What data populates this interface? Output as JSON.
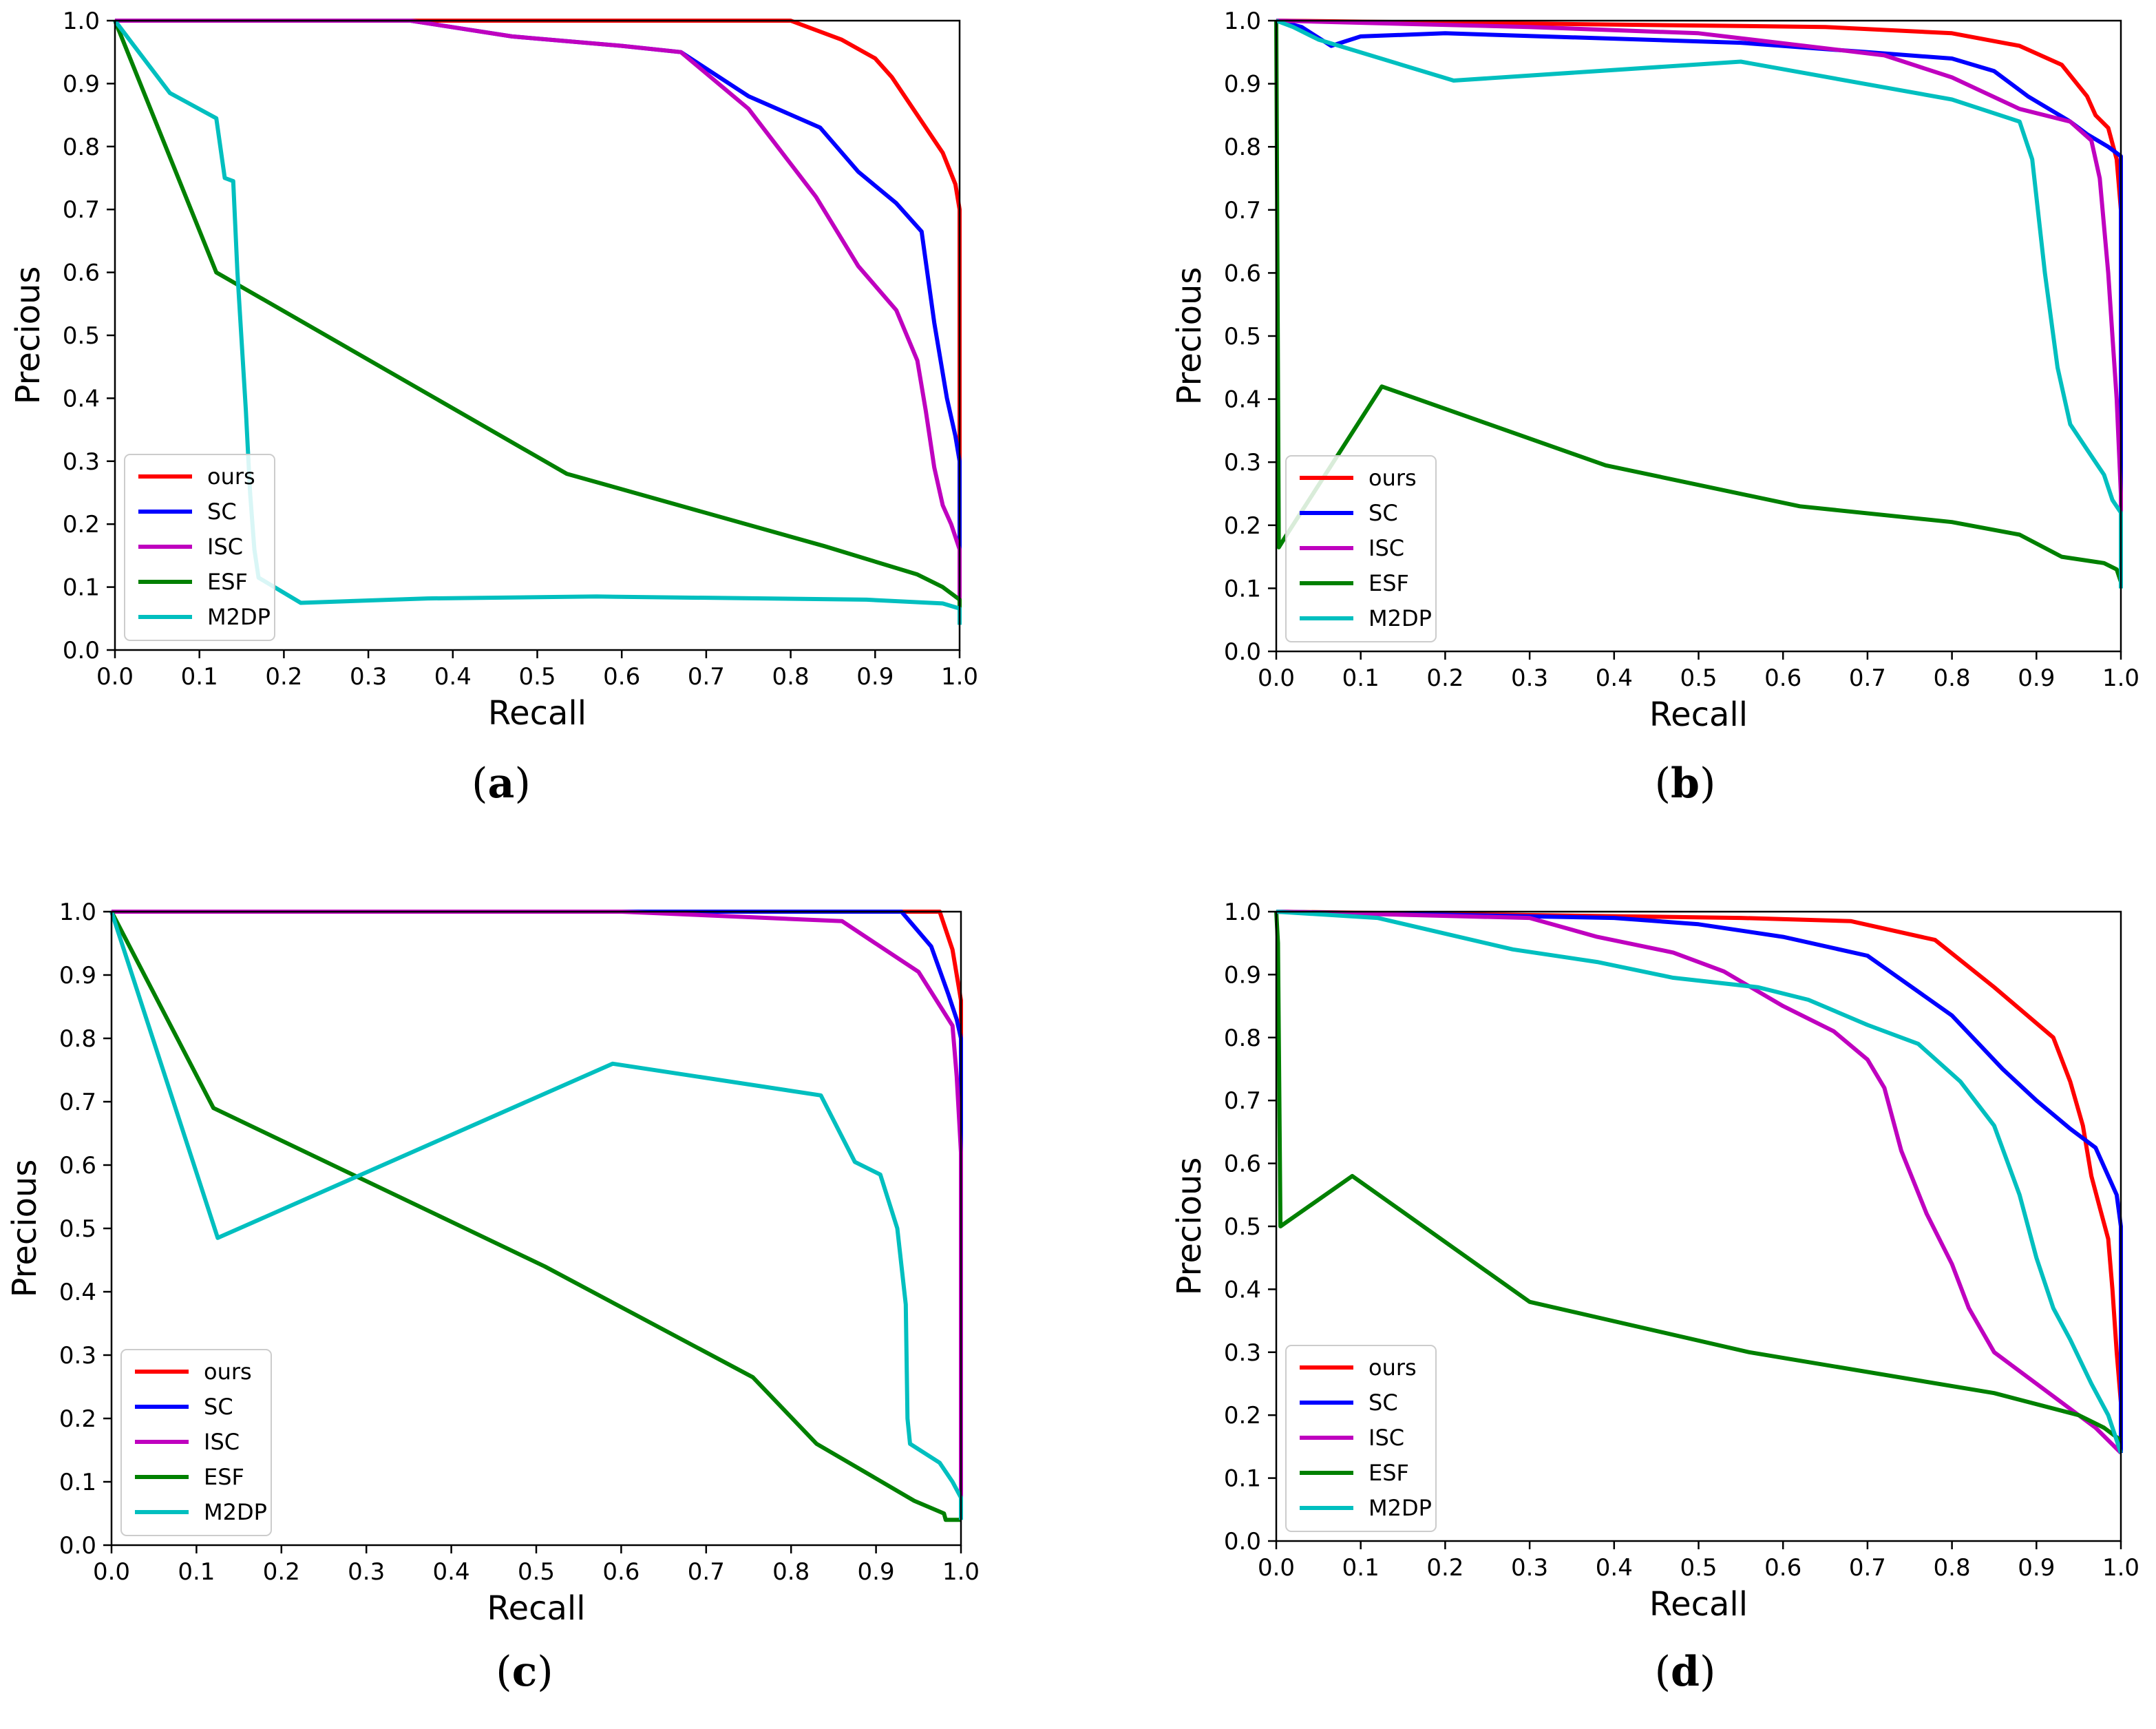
{
  "colors": {
    "ours": "#ff0000",
    "SC": "#0000ff",
    "ISC": "#bf00bf",
    "ESF": "#008000",
    "M2DP": "#00bfbf"
  },
  "chart_data": [
    {
      "type": "line",
      "panel": "(a)",
      "xlabel": "Recall",
      "ylabel": "Precious",
      "xlim": [
        0,
        1
      ],
      "ylim": [
        0,
        1
      ],
      "xticks": [
        "0.0",
        "0.1",
        "0.2",
        "0.3",
        "0.4",
        "0.5",
        "0.6",
        "0.7",
        "0.8",
        "0.9",
        "1.0"
      ],
      "yticks": [
        "0.0",
        "0.1",
        "0.2",
        "0.3",
        "0.4",
        "0.5",
        "0.6",
        "0.7",
        "0.8",
        "0.9",
        "1.0"
      ],
      "legend": [
        "ours",
        "SC",
        "ISC",
        "ESF",
        "M2DP"
      ],
      "legend_loc": "lower-left",
      "series": [
        {
          "name": "ours",
          "x": [
            0,
            0.8,
            0.86,
            0.9,
            0.92,
            0.95,
            0.98,
            0.995,
            1.0,
            1.0
          ],
          "y": [
            1.0,
            1.0,
            0.97,
            0.94,
            0.91,
            0.85,
            0.79,
            0.74,
            0.7,
            0.05
          ]
        },
        {
          "name": "SC",
          "x": [
            0,
            0.35,
            0.47,
            0.6,
            0.67,
            0.75,
            0.835,
            0.88,
            0.925,
            0.955,
            0.97,
            0.985,
            0.995,
            1.0,
            1.0
          ],
          "y": [
            1.0,
            1.0,
            0.975,
            0.96,
            0.95,
            0.88,
            0.83,
            0.76,
            0.71,
            0.665,
            0.52,
            0.4,
            0.34,
            0.3,
            0.05
          ]
        },
        {
          "name": "ISC",
          "x": [
            0,
            0.35,
            0.47,
            0.6,
            0.67,
            0.75,
            0.83,
            0.88,
            0.925,
            0.95,
            0.96,
            0.97,
            0.98,
            0.99,
            1.0,
            1.0
          ],
          "y": [
            1.0,
            1.0,
            0.975,
            0.96,
            0.95,
            0.86,
            0.72,
            0.61,
            0.54,
            0.46,
            0.38,
            0.29,
            0.23,
            0.2,
            0.16,
            0.05
          ]
        },
        {
          "name": "ESF",
          "x": [
            0,
            0.12,
            0.535,
            0.84,
            0.95,
            0.98,
            1.0,
            1.0
          ],
          "y": [
            1.0,
            0.6,
            0.28,
            0.165,
            0.12,
            0.1,
            0.08,
            0.05
          ]
        },
        {
          "name": "M2DP",
          "x": [
            0,
            0.065,
            0.12,
            0.13,
            0.14,
            0.145,
            0.155,
            0.16,
            0.165,
            0.17,
            0.22,
            0.37,
            0.57,
            0.89,
            0.98,
            1.0,
            1.0
          ],
          "y": [
            1.0,
            0.885,
            0.845,
            0.75,
            0.745,
            0.6,
            0.38,
            0.25,
            0.16,
            0.115,
            0.075,
            0.082,
            0.085,
            0.08,
            0.074,
            0.066,
            0.04
          ]
        }
      ]
    },
    {
      "type": "line",
      "panel": "(b)",
      "xlabel": "Recall",
      "ylabel": "Precious",
      "xlim": [
        0,
        1
      ],
      "ylim": [
        0,
        1
      ],
      "xticks": [
        "0.0",
        "0.1",
        "0.2",
        "0.3",
        "0.4",
        "0.5",
        "0.6",
        "0.7",
        "0.8",
        "0.9",
        "1.0"
      ],
      "yticks": [
        "0.0",
        "0.1",
        "0.2",
        "0.3",
        "0.4",
        "0.5",
        "0.6",
        "0.7",
        "0.8",
        "0.9",
        "1.0"
      ],
      "legend": [
        "ours",
        "SC",
        "ISC",
        "ESF",
        "M2DP"
      ],
      "legend_loc": "lower-left",
      "series": [
        {
          "name": "ours",
          "x": [
            0,
            0.65,
            0.8,
            0.88,
            0.93,
            0.96,
            0.97,
            0.985,
            0.995,
            1.0,
            1.0
          ],
          "y": [
            1.0,
            0.99,
            0.98,
            0.96,
            0.93,
            0.88,
            0.85,
            0.83,
            0.78,
            0.7,
            0.14
          ]
        },
        {
          "name": "SC",
          "x": [
            0,
            0.03,
            0.065,
            0.1,
            0.2,
            0.55,
            0.7,
            0.8,
            0.85,
            0.89,
            0.94,
            0.96,
            0.985,
            1.0,
            1.0
          ],
          "y": [
            1.0,
            0.99,
            0.96,
            0.975,
            0.98,
            0.965,
            0.95,
            0.94,
            0.92,
            0.88,
            0.84,
            0.82,
            0.8,
            0.785,
            0.14
          ]
        },
        {
          "name": "ISC",
          "x": [
            0,
            0.3,
            0.5,
            0.72,
            0.8,
            0.88,
            0.94,
            0.965,
            0.975,
            0.985,
            0.99,
            0.995,
            1.0,
            1.0
          ],
          "y": [
            1.0,
            0.99,
            0.98,
            0.945,
            0.91,
            0.86,
            0.84,
            0.81,
            0.75,
            0.6,
            0.5,
            0.4,
            0.25,
            0.14
          ]
        },
        {
          "name": "ESF",
          "x": [
            0,
            0.003,
            0.01,
            0.125,
            0.39,
            0.62,
            0.8,
            0.88,
            0.93,
            0.98,
            0.995,
            1.0,
            1.0
          ],
          "y": [
            1.0,
            0.165,
            0.18,
            0.42,
            0.295,
            0.23,
            0.205,
            0.185,
            0.15,
            0.14,
            0.13,
            0.11,
            0.1
          ]
        },
        {
          "name": "M2DP",
          "x": [
            0,
            0.02,
            0.05,
            0.21,
            0.55,
            0.8,
            0.88,
            0.895,
            0.91,
            0.925,
            0.94,
            0.96,
            0.98,
            0.99,
            1.0,
            1.0
          ],
          "y": [
            1.0,
            0.99,
            0.97,
            0.905,
            0.935,
            0.875,
            0.84,
            0.78,
            0.6,
            0.45,
            0.36,
            0.32,
            0.28,
            0.24,
            0.22,
            0.1
          ]
        }
      ]
    },
    {
      "type": "line",
      "panel": "(c)",
      "xlabel": "Recall",
      "ylabel": "Precious",
      "xlim": [
        0,
        1
      ],
      "ylim": [
        0,
        1
      ],
      "xticks": [
        "0.0",
        "0.1",
        "0.2",
        "0.3",
        "0.4",
        "0.5",
        "0.6",
        "0.7",
        "0.8",
        "0.9",
        "1.0"
      ],
      "yticks": [
        "0.0",
        "0.1",
        "0.2",
        "0.3",
        "0.4",
        "0.5",
        "0.6",
        "0.7",
        "0.8",
        "0.9",
        "1.0"
      ],
      "legend": [
        "ours",
        "SC",
        "ISC",
        "ESF",
        "M2DP"
      ],
      "legend_loc": "lower-left",
      "series": [
        {
          "name": "ours",
          "x": [
            0,
            0.975,
            0.99,
            1.0,
            1.0
          ],
          "y": [
            1.0,
            1.0,
            0.94,
            0.86,
            0.05
          ]
        },
        {
          "name": "SC",
          "x": [
            0,
            0.93,
            0.965,
            0.985,
            0.995,
            1.0,
            1.0
          ],
          "y": [
            1.0,
            1.0,
            0.945,
            0.87,
            0.83,
            0.8,
            0.05
          ]
        },
        {
          "name": "ISC",
          "x": [
            0,
            0.6,
            0.86,
            0.95,
            0.99,
            0.995,
            1.0,
            1.0
          ],
          "y": [
            1.0,
            1.0,
            0.985,
            0.905,
            0.82,
            0.74,
            0.62,
            0.05
          ]
        },
        {
          "name": "ESF",
          "x": [
            0,
            0.12,
            0.51,
            0.755,
            0.83,
            0.945,
            0.98,
            0.982,
            1.0
          ],
          "y": [
            1.0,
            0.69,
            0.44,
            0.265,
            0.16,
            0.07,
            0.05,
            0.04,
            0.04
          ]
        },
        {
          "name": "M2DP",
          "x": [
            0,
            0.125,
            0.59,
            0.835,
            0.875,
            0.905,
            0.925,
            0.935,
            0.937,
            0.94,
            0.975,
            0.99,
            1.0,
            1.0
          ],
          "y": [
            1.0,
            0.485,
            0.76,
            0.71,
            0.605,
            0.585,
            0.5,
            0.38,
            0.2,
            0.16,
            0.13,
            0.1,
            0.075,
            0.04
          ]
        }
      ]
    },
    {
      "type": "line",
      "panel": "(d)",
      "xlabel": "Recall",
      "ylabel": "Precious",
      "xlim": [
        0,
        1
      ],
      "ylim": [
        0,
        1
      ],
      "xticks": [
        "0.0",
        "0.1",
        "0.2",
        "0.3",
        "0.4",
        "0.5",
        "0.6",
        "0.7",
        "0.8",
        "0.9",
        "1.0"
      ],
      "yticks": [
        "0.0",
        "0.1",
        "0.2",
        "0.3",
        "0.4",
        "0.5",
        "0.6",
        "0.7",
        "0.8",
        "0.9",
        "1.0"
      ],
      "legend": [
        "ours",
        "SC",
        "ISC",
        "ESF",
        "M2DP"
      ],
      "legend_loc": "lower-left",
      "series": [
        {
          "name": "ours",
          "x": [
            0,
            0.55,
            0.68,
            0.78,
            0.85,
            0.92,
            0.94,
            0.955,
            0.965,
            0.975,
            0.985,
            0.99,
            0.995,
            1.0,
            1.0
          ],
          "y": [
            1.0,
            0.99,
            0.985,
            0.955,
            0.88,
            0.8,
            0.73,
            0.66,
            0.58,
            0.53,
            0.48,
            0.4,
            0.3,
            0.22,
            0.14
          ]
        },
        {
          "name": "SC",
          "x": [
            0,
            0.4,
            0.5,
            0.6,
            0.7,
            0.8,
            0.86,
            0.9,
            0.94,
            0.97,
            0.985,
            0.995,
            1.0,
            1.0
          ],
          "y": [
            1.0,
            0.99,
            0.98,
            0.96,
            0.93,
            0.835,
            0.75,
            0.7,
            0.655,
            0.625,
            0.58,
            0.55,
            0.5,
            0.14
          ]
        },
        {
          "name": "ISC",
          "x": [
            0,
            0.3,
            0.38,
            0.47,
            0.53,
            0.6,
            0.66,
            0.7,
            0.72,
            0.74,
            0.77,
            0.8,
            0.82,
            0.85,
            0.87,
            0.9,
            0.94,
            0.97,
            0.985,
            1.0
          ],
          "y": [
            1.0,
            0.99,
            0.96,
            0.935,
            0.905,
            0.85,
            0.81,
            0.765,
            0.72,
            0.62,
            0.52,
            0.44,
            0.37,
            0.3,
            0.28,
            0.25,
            0.21,
            0.18,
            0.16,
            0.14
          ]
        },
        {
          "name": "ESF",
          "x": [
            0,
            0.002,
            0.005,
            0.09,
            0.3,
            0.56,
            0.85,
            0.95,
            0.98,
            1.0
          ],
          "y": [
            1.0,
            0.95,
            0.5,
            0.58,
            0.38,
            0.3,
            0.235,
            0.2,
            0.18,
            0.16
          ]
        },
        {
          "name": "M2DP",
          "x": [
            0,
            0.12,
            0.28,
            0.38,
            0.47,
            0.57,
            0.63,
            0.7,
            0.76,
            0.81,
            0.85,
            0.88,
            0.9,
            0.92,
            0.94,
            0.965,
            0.985,
            1.0
          ],
          "y": [
            1.0,
            0.99,
            0.94,
            0.92,
            0.895,
            0.88,
            0.86,
            0.82,
            0.79,
            0.73,
            0.66,
            0.55,
            0.45,
            0.37,
            0.32,
            0.25,
            0.2,
            0.14
          ]
        }
      ]
    }
  ]
}
